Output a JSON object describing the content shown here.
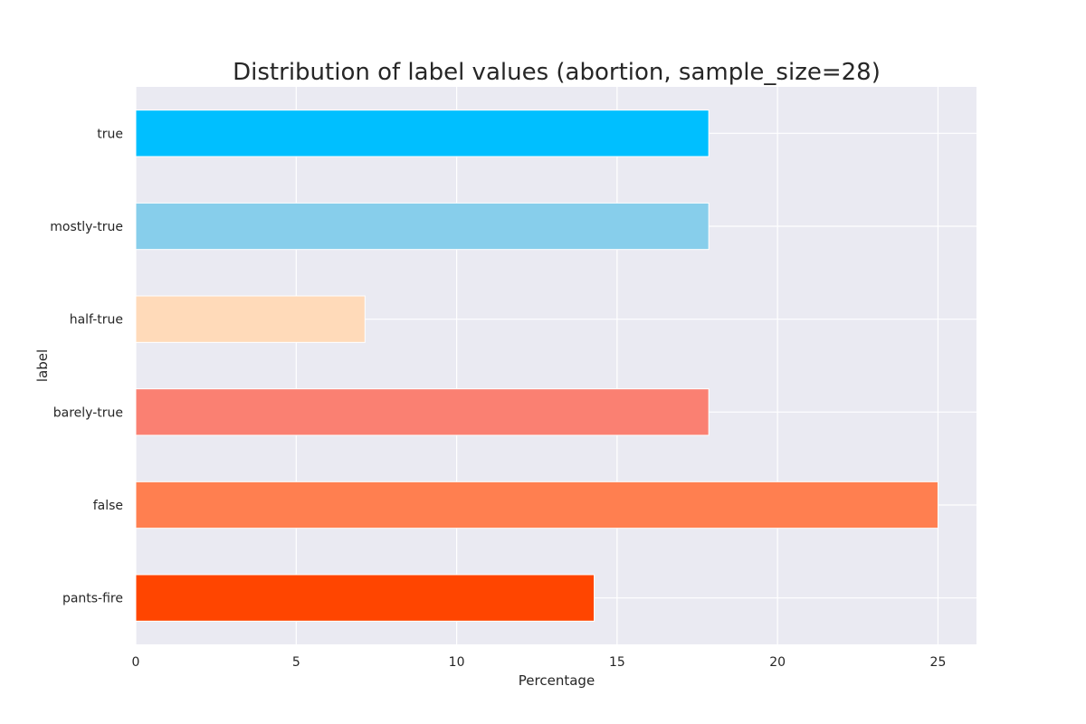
{
  "chart_data": {
    "type": "bar",
    "orientation": "horizontal",
    "title": "Distribution of label values (abortion, sample_size=28)",
    "xlabel": "Percentage",
    "ylabel": "label",
    "categories": [
      "true",
      "mostly-true",
      "half-true",
      "barely-true",
      "false",
      "pants-fire"
    ],
    "values": [
      17.857,
      17.857,
      7.143,
      17.857,
      25.0,
      14.286
    ],
    "colors": [
      "#00bfff",
      "#87ceeb",
      "#ffdab9",
      "#fa8072",
      "#ff7f50",
      "#ff4500"
    ],
    "xlim": [
      0,
      26.2
    ],
    "xticks": [
      0,
      5,
      10,
      15,
      20,
      25
    ],
    "grid": true,
    "background": "#eaeaf2",
    "gridline_color": "#ffffff"
  }
}
